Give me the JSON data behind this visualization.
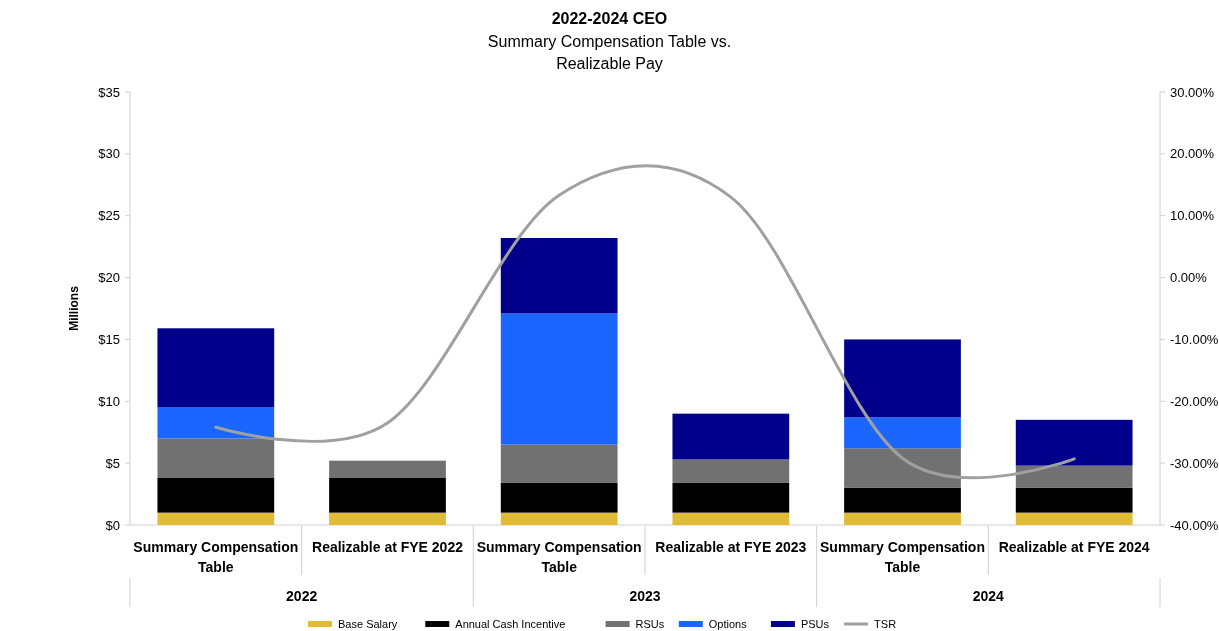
{
  "chart_data": {
    "type": "bar",
    "title": "2022-2024 CEO",
    "subtitle": "Summary Compensation Table vs. Realizable Pay",
    "ylabel": "Millions",
    "categories": [
      "Summary Compensation Table",
      "Realizable at FYE 2022",
      "Summary Compensation Table",
      "Realizable at FYE 2023",
      "Summary Compensation Table",
      "Realizable at FYE 2024"
    ],
    "stacked": true,
    "series": [
      {
        "name": "Base Salary",
        "color": "#dfbb36",
        "values": [
          1.0,
          1.0,
          1.0,
          1.0,
          1.0,
          1.0
        ]
      },
      {
        "name": "Annual Cash Incentive",
        "color": "#000000",
        "values": [
          2.8,
          2.8,
          2.4,
          2.4,
          2.0,
          2.0
        ]
      },
      {
        "name": "RSUs",
        "color": "#717171",
        "values": [
          3.2,
          1.4,
          3.1,
          1.9,
          3.2,
          1.8
        ]
      },
      {
        "name": "Options",
        "color": "#1a66ff",
        "values": [
          2.5,
          0,
          10.6,
          0,
          2.5,
          0
        ]
      },
      {
        "name": "PSUs",
        "color": "#00008b",
        "values": [
          6.4,
          0,
          6.1,
          3.7,
          6.3,
          3.7
        ]
      },
      {
        "name": "TSR",
        "type": "line",
        "axis": "y2",
        "color": "#a0a0a0",
        "values": [
          -24.2,
          -23.5,
          13.3,
          13.0,
          -29.2,
          -29.3
        ]
      }
    ],
    "ylim": [
      0,
      35
    ],
    "yticks": [
      {
        "value": 0,
        "label": "$0"
      },
      {
        "value": 5,
        "label": "$5"
      },
      {
        "value": 10,
        "label": "$10"
      },
      {
        "value": 15,
        "label": "$15"
      },
      {
        "value": 20,
        "label": "$20"
      },
      {
        "value": 25,
        "label": "$25"
      },
      {
        "value": 30,
        "label": "$30"
      },
      {
        "value": 35,
        "label": "$35"
      }
    ],
    "y2lim": [
      -40,
      30
    ],
    "y2ticks": [
      {
        "value": -40,
        "label": "-40.00%"
      },
      {
        "value": -30,
        "label": "-30.00%"
      },
      {
        "value": -20,
        "label": "-20.00%"
      },
      {
        "value": -10,
        "label": "-10.00%"
      },
      {
        "value": 0,
        "label": "0.00%"
      },
      {
        "value": 10,
        "label": "10.00%"
      },
      {
        "value": 20,
        "label": "20.00%"
      },
      {
        "value": 30,
        "label": "30.00%"
      }
    ],
    "annotations": [
      "2022",
      "2023",
      "2024"
    ],
    "grid": false,
    "legend": "bottom"
  }
}
